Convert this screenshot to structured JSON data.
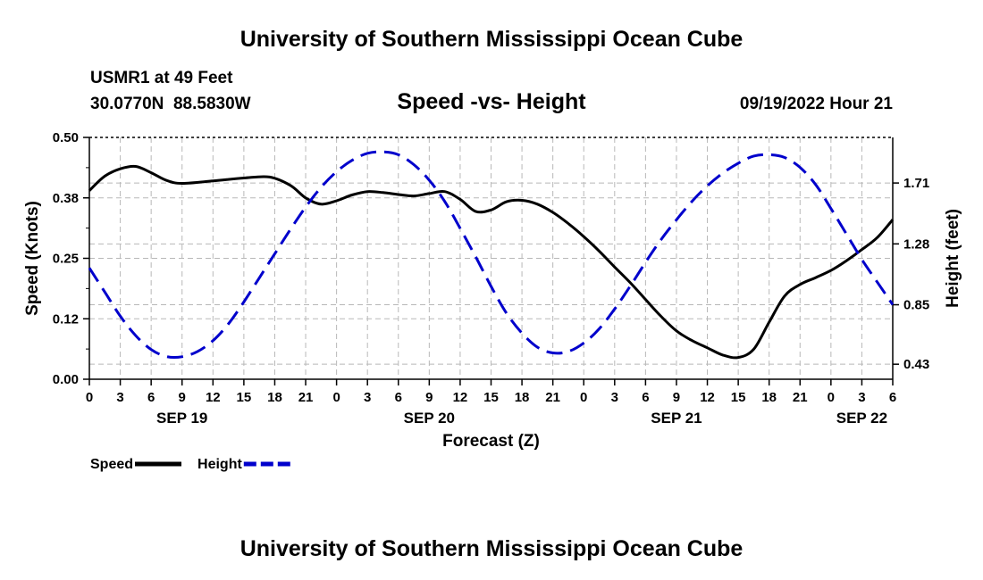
{
  "header": {
    "title": "University of Southern Mississippi Ocean Cube",
    "station": "USMR1 at 49 Feet",
    "coords": "30.0770N  88.5830W",
    "subtitle": "Speed -vs- Height",
    "datetime": "09/19/2022 Hour 21"
  },
  "footer": {
    "title": "University of Southern Mississippi Ocean Cube"
  },
  "chart_data": {
    "type": "line",
    "xlabel": "Forecast (Z)",
    "x_range_hours": [
      0,
      78
    ],
    "x_tick_labels": [
      "0",
      "3",
      "6",
      "9",
      "12",
      "15",
      "18",
      "21",
      "0",
      "3",
      "6",
      "9",
      "12",
      "15",
      "18",
      "21",
      "0",
      "3",
      "6",
      "9",
      "12",
      "15",
      "18",
      "21",
      "0",
      "3",
      "6"
    ],
    "date_labels": [
      {
        "label": "SEP 19",
        "hour": 9
      },
      {
        "label": "SEP 20",
        "hour": 33
      },
      {
        "label": "SEP 21",
        "hour": 57
      },
      {
        "label": "SEP 22",
        "hour": 75
      }
    ],
    "y_left": {
      "label": "Speed (Knots)",
      "range": [
        0,
        0.5
      ],
      "tick_values": [
        0,
        0.125,
        0.25,
        0.375,
        0.5
      ],
      "tick_labels": [
        "0.00",
        "0.12",
        "0.25",
        "0.38",
        "0.50"
      ]
    },
    "y_right": {
      "label": "Height (feet)",
      "range": [
        0.324,
        2.032
      ],
      "tick_values": [
        0.43,
        0.85,
        1.28,
        1.71
      ],
      "tick_labels": [
        "0.43",
        "0.85",
        "1.28",
        "1.71"
      ]
    },
    "series": [
      {
        "name": "Speed",
        "axis": "left",
        "color": "#000000",
        "style": "solid",
        "x": [
          0,
          1.5,
          3,
          4.5,
          6,
          7.5,
          9,
          12,
          15,
          17.5,
          19.5,
          21,
          22.5,
          24,
          25.5,
          27,
          28.5,
          30,
          31.5,
          33,
          34.5,
          36,
          37.5,
          39,
          40.5,
          42,
          43.5,
          45,
          46.5,
          48,
          49.5,
          51,
          52.5,
          54,
          55.5,
          57,
          58.5,
          60,
          61.5,
          63,
          64.5,
          66,
          67.5,
          69,
          70.5,
          72,
          73.5,
          75,
          76.5,
          78
        ],
        "values": [
          0.39,
          0.42,
          0.435,
          0.44,
          0.427,
          0.411,
          0.405,
          0.41,
          0.416,
          0.418,
          0.401,
          0.375,
          0.362,
          0.369,
          0.381,
          0.388,
          0.386,
          0.382,
          0.379,
          0.384,
          0.388,
          0.372,
          0.347,
          0.35,
          0.367,
          0.37,
          0.362,
          0.345,
          0.322,
          0.295,
          0.265,
          0.232,
          0.2,
          0.165,
          0.13,
          0.1,
          0.08,
          0.065,
          0.05,
          0.045,
          0.062,
          0.118,
          0.172,
          0.196,
          0.21,
          0.225,
          0.245,
          0.268,
          0.293,
          0.33
        ]
      },
      {
        "name": "Height",
        "axis": "right",
        "color": "#0000cc",
        "style": "dashed",
        "x": [
          0,
          1.5,
          3,
          4.5,
          6,
          7.5,
          9,
          10.5,
          12,
          13.5,
          15,
          16.5,
          18,
          19.5,
          21,
          22.5,
          24,
          25.5,
          27,
          28.5,
          30,
          31.5,
          33,
          34.5,
          36,
          37.5,
          39,
          40.5,
          42,
          43.5,
          45,
          46.5,
          48,
          49.5,
          51,
          52.5,
          54,
          55.5,
          57,
          58.5,
          60,
          61.5,
          63,
          64.5,
          66,
          67.5,
          69,
          70.5,
          72,
          73.5,
          75,
          76.5,
          78
        ],
        "values": [
          1.11,
          0.94,
          0.77,
          0.632,
          0.534,
          0.484,
          0.483,
          0.52,
          0.596,
          0.715,
          0.87,
          1.04,
          1.21,
          1.38,
          1.54,
          1.68,
          1.79,
          1.87,
          1.92,
          1.93,
          1.91,
          1.84,
          1.73,
          1.58,
          1.39,
          1.19,
          0.98,
          0.79,
          0.65,
          0.55,
          0.51,
          0.52,
          0.58,
          0.68,
          0.82,
          0.98,
          1.15,
          1.31,
          1.45,
          1.58,
          1.69,
          1.78,
          1.85,
          1.9,
          1.91,
          1.89,
          1.82,
          1.7,
          1.53,
          1.35,
          1.17,
          1.01,
          0.85
        ]
      }
    ],
    "legend": [
      {
        "label": "Speed",
        "color": "#000000",
        "style": "solid"
      },
      {
        "label": "Height",
        "color": "#0000cc",
        "style": "dashed"
      }
    ],
    "legend_position": "bottom-left",
    "grid": true
  }
}
